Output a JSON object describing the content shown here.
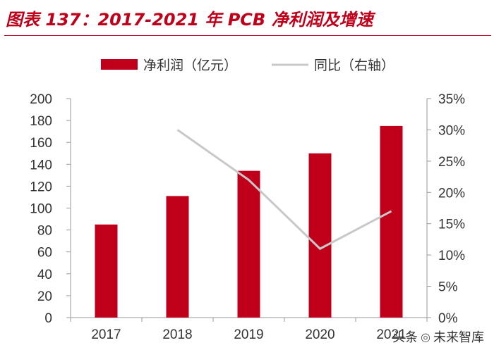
{
  "title": "图表 137：2017-2021 年 PCB 净利润及增速",
  "watermark": {
    "prefix": "头条",
    "handle": "未来智库",
    "logo_icon": "weibo-like-logo"
  },
  "colors": {
    "bar": "#c0001a",
    "line": "#c8c8c8",
    "title": "#c0001a",
    "axis": "#999999",
    "text": "#333333"
  },
  "chart_data": {
    "type": "bar",
    "categories": [
      "2017",
      "2018",
      "2019",
      "2020",
      "2021"
    ],
    "series": [
      {
        "name": "净利润（亿元）",
        "type": "bar",
        "axis": "left",
        "values": [
          85,
          111,
          134,
          150,
          175
        ]
      },
      {
        "name": "同比（右轴）",
        "type": "line",
        "axis": "right",
        "values": [
          null,
          30,
          22,
          11,
          17
        ],
        "unit": "%"
      }
    ],
    "ylim": [
      0,
      200
    ],
    "yticks": [
      0,
      20,
      40,
      60,
      80,
      100,
      120,
      140,
      160,
      180,
      200
    ],
    "y2lim": [
      0,
      35
    ],
    "y2ticks": [
      "0%",
      "5%",
      "10%",
      "15%",
      "20%",
      "25%",
      "30%",
      "35%"
    ],
    "legend_position": "top-center",
    "grid": false
  }
}
